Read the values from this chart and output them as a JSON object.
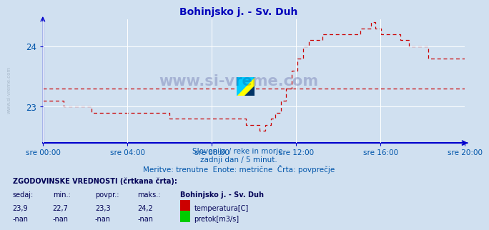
{
  "title": "Bohinjsko j. - Sv. Duh",
  "bg_color": "#d0e0f0",
  "plot_bg_color": "#d0e0f0",
  "line_color": "#cc0000",
  "avg_line_color": "#cc0000",
  "axis_color": "#0000cc",
  "grid_color": "#ffffff",
  "text_color": "#0055aa",
  "subtitle1": "Slovenija / reke in morje.",
  "subtitle2": "zadnji dan / 5 minut.",
  "subtitle3": "Meritve: trenutne  Enote: metrične  Črta: povprečje",
  "footer_title": "ZGODOVINSKE VREDNOSTI (črtkana črta):",
  "col_headers": [
    "sedaj:",
    "min.:",
    "povpr.:",
    "maks.:",
    "Bohinjsko j. - Sv. Duh"
  ],
  "row1": [
    "23,9",
    "22,7",
    "23,3",
    "24,2"
  ],
  "row1_label": "temperatura[C]",
  "row1_color": "#cc0000",
  "row2": [
    "-nan",
    "-nan",
    "-nan",
    "-nan"
  ],
  "row2_label": "pretok[m3/s]",
  "row2_color": "#00cc00",
  "ylim": [
    22.4,
    24.45
  ],
  "yticks": [
    23.0,
    24.0
  ],
  "xlabel_labels": [
    "sre 00:00",
    "sre 04:00",
    "sre 08:00",
    "sre 12:00",
    "sre 16:00",
    "sre 20:00"
  ],
  "num_points": 288,
  "avg_value": 23.3
}
